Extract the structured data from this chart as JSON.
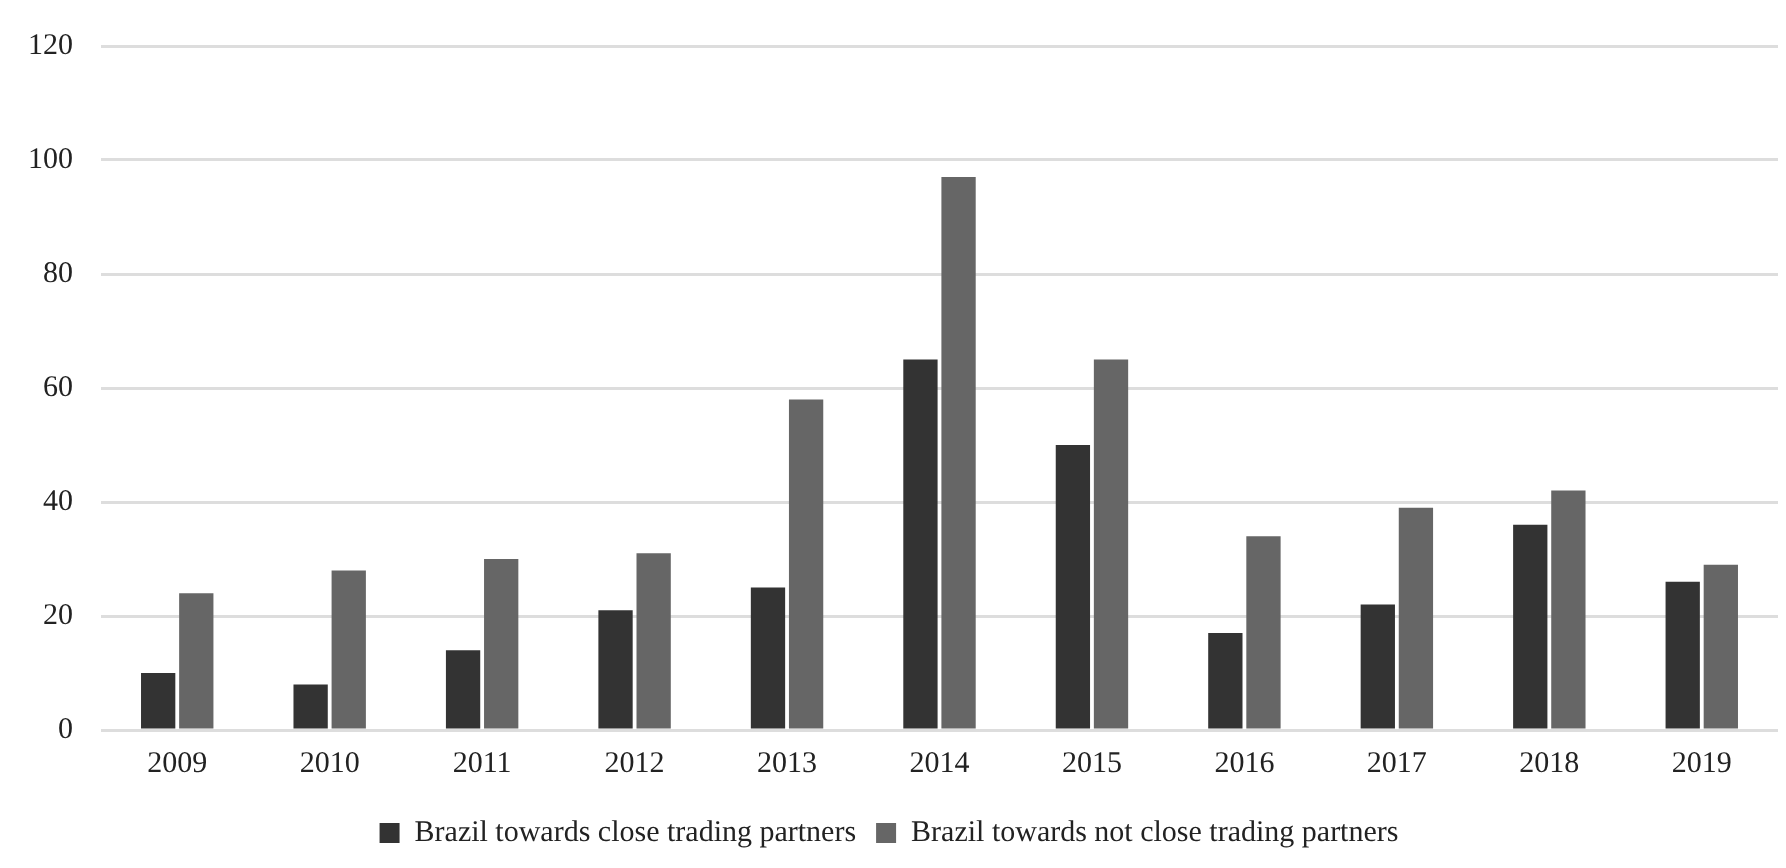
{
  "chart_data": {
    "type": "bar",
    "categories": [
      "2009",
      "2010",
      "2011",
      "2012",
      "2013",
      "2014",
      "2015",
      "2016",
      "2017",
      "2018",
      "2019"
    ],
    "series": [
      {
        "name": "Brazil towards close trading partners",
        "color": "#333333",
        "values": [
          10,
          8,
          14,
          21,
          25,
          65,
          50,
          17,
          22,
          36,
          26
        ]
      },
      {
        "name": "Brazil towards not close trading partners",
        "color": "#666666",
        "values": [
          24,
          28,
          30,
          31,
          58,
          97,
          65,
          34,
          39,
          42,
          29
        ]
      }
    ],
    "ylim": [
      0,
      120
    ],
    "yticks": [
      0,
      20,
      40,
      60,
      80,
      100,
      120
    ],
    "grid": "y",
    "legend": "bottom"
  }
}
